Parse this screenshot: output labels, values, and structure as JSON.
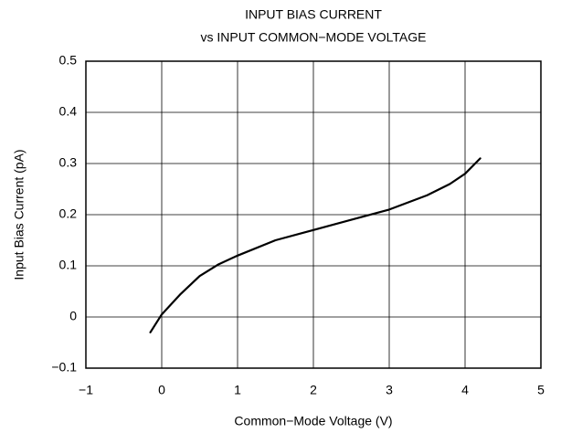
{
  "chart_data": {
    "type": "line",
    "title": "INPUT BIAS CURRENT",
    "subtitle": "vs INPUT COMMON−MODE VOLTAGE",
    "x_label": "Common−Mode Voltage (V)",
    "y_label": "Input Bias Current (pA)",
    "x": [
      -0.15,
      0,
      0.25,
      0.5,
      0.75,
      1,
      1.5,
      2,
      2.5,
      3,
      3.5,
      3.8,
      4,
      4.2
    ],
    "values": [
      -0.03,
      0.005,
      0.045,
      0.08,
      0.103,
      0.12,
      0.15,
      0.17,
      0.19,
      0.21,
      0.238,
      0.26,
      0.28,
      0.31
    ],
    "color": "#000000",
    "xlim": [
      -1,
      5
    ],
    "xticks": [
      {
        "value": -1,
        "label": "−1"
      },
      0,
      1,
      2,
      3,
      4,
      5
    ],
    "ylim": [
      -0.1,
      0.5
    ],
    "yticks": [
      {
        "value": -0.1,
        "label": "−0.1"
      },
      0,
      0.1,
      0.2,
      0.3,
      0.4,
      0.5
    ],
    "grid": true
  }
}
